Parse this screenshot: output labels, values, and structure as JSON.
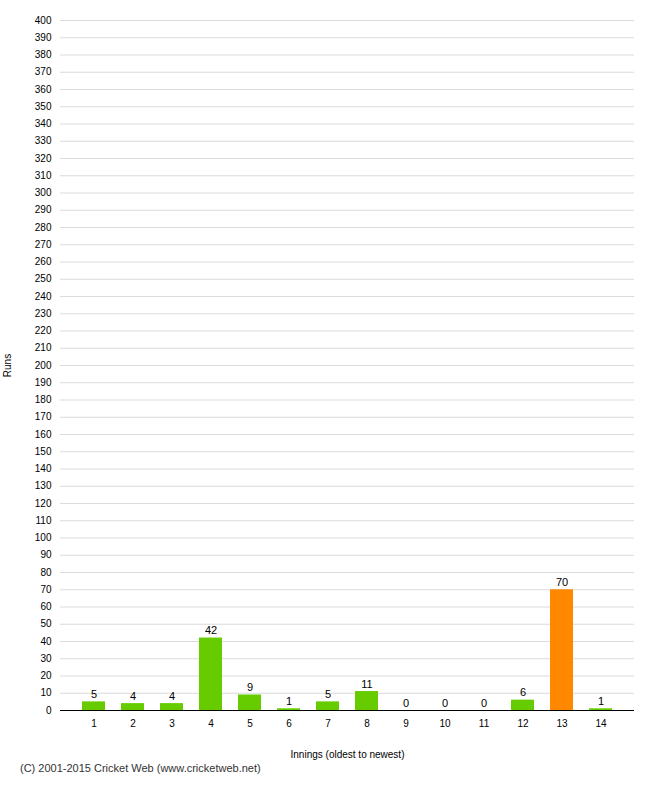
{
  "chart_data": {
    "type": "bar",
    "xlabel": "Innings (oldest to newest)",
    "ylabel": "Runs",
    "caption": "(C) 2001-2015 Cricket Web (www.cricketweb.net)",
    "categories": [
      1,
      2,
      3,
      4,
      5,
      6,
      7,
      8,
      9,
      10,
      11,
      12,
      13,
      14
    ],
    "values": [
      5,
      4,
      4,
      42,
      9,
      1,
      5,
      11,
      0,
      0,
      0,
      6,
      70,
      1
    ],
    "colors": [
      "#66cc00",
      "#66cc00",
      "#66cc00",
      "#66cc00",
      "#66cc00",
      "#66cc00",
      "#66cc00",
      "#66cc00",
      "#66cc00",
      "#66cc00",
      "#66cc00",
      "#66cc00",
      "#ff8800",
      "#66cc00"
    ],
    "ylim": [
      0,
      400
    ],
    "yticks": [
      0,
      10,
      20,
      30,
      40,
      50,
      60,
      70,
      80,
      90,
      100,
      110,
      120,
      130,
      140,
      150,
      160,
      170,
      180,
      190,
      200,
      210,
      220,
      230,
      240,
      250,
      260,
      270,
      280,
      290,
      300,
      310,
      320,
      330,
      340,
      350,
      360,
      370,
      380,
      390,
      400
    ],
    "grid": true,
    "data_labels": true
  }
}
